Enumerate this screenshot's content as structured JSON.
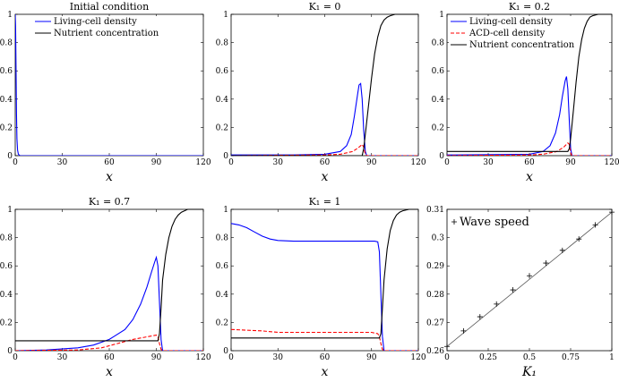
{
  "colors": {
    "living": "#0000ff",
    "acd": "#ff0000",
    "nutrient": "#000000",
    "wave": "#000000"
  },
  "chart_data": [
    {
      "type": "line",
      "title": "Initial condition",
      "xlabel": "x",
      "xlim": [
        0,
        120
      ],
      "ylim": [
        0,
        1
      ],
      "xticks": [
        "0",
        "30",
        "60",
        "90",
        "120"
      ],
      "yticks": [
        "0",
        "0.2",
        "0.4",
        "0.6",
        "0.8",
        "1"
      ],
      "legend": [
        "Living-cell density",
        "Nutrient concentration"
      ],
      "series": [
        {
          "name": "Living-cell density",
          "key": "living",
          "x": [
            0,
            0.25,
            0.5,
            0.8,
            1.1,
            1.5,
            2,
            3,
            10,
            40,
            80,
            120
          ],
          "y": [
            1,
            0.92,
            0.62,
            0.3,
            0.12,
            0.04,
            0.01,
            0.0,
            0.0,
            0.0,
            0.0,
            0.0
          ]
        }
      ]
    },
    {
      "type": "line",
      "title": "K₁ = 0",
      "xlabel": "x",
      "xlim": [
        0,
        120
      ],
      "ylim": [
        0,
        1
      ],
      "xticks": [
        "0",
        "30",
        "60",
        "90",
        "120"
      ],
      "yticks": [
        "0",
        "0.2",
        "0.4",
        "0.6",
        "0.8",
        "1"
      ],
      "series": [
        {
          "name": "Living-cell density",
          "key": "living",
          "x": [
            0,
            40,
            60,
            70,
            74,
            77,
            79,
            81,
            82,
            83,
            84,
            85,
            86,
            87,
            120
          ],
          "y": [
            0.005,
            0.005,
            0.01,
            0.03,
            0.07,
            0.15,
            0.28,
            0.43,
            0.5,
            0.51,
            0.4,
            0.18,
            0.03,
            0.0,
            0.0
          ]
        },
        {
          "name": "ACD-cell density",
          "key": "acd",
          "dashed": true,
          "x": [
            0,
            60,
            70,
            78,
            82,
            84,
            85,
            86,
            87,
            120
          ],
          "y": [
            0.0,
            0.005,
            0.01,
            0.03,
            0.06,
            0.08,
            0.06,
            0.01,
            0.0,
            0.0
          ]
        },
        {
          "name": "Nutrient concentration",
          "key": "nutrient",
          "x": [
            0,
            84,
            85,
            86,
            88,
            90,
            92,
            94,
            96,
            98,
            100,
            102,
            105,
            110,
            120
          ],
          "y": [
            0.0,
            0.0,
            0.05,
            0.15,
            0.35,
            0.55,
            0.72,
            0.84,
            0.92,
            0.96,
            0.98,
            0.99,
            1.0,
            1.0,
            1.0
          ]
        }
      ]
    },
    {
      "type": "line",
      "title": "K₁ = 0.2",
      "xlabel": "x",
      "xlim": [
        0,
        120
      ],
      "ylim": [
        0,
        1
      ],
      "xticks": [
        "0",
        "30",
        "60",
        "90",
        "120"
      ],
      "yticks": [
        "0",
        "0.2",
        "0.4",
        "0.6",
        "0.8",
        "1"
      ],
      "legend": [
        "Living-cell density",
        "ACD-cell density",
        "Nutrient concentration"
      ],
      "series": [
        {
          "name": "Living-cell density",
          "key": "living",
          "x": [
            0,
            60,
            70,
            75,
            79,
            82,
            84,
            86,
            87,
            88,
            89,
            90,
            91,
            120
          ],
          "y": [
            0.005,
            0.01,
            0.03,
            0.07,
            0.16,
            0.29,
            0.42,
            0.53,
            0.56,
            0.47,
            0.25,
            0.05,
            0.0,
            0.0
          ]
        },
        {
          "name": "ACD-cell density",
          "key": "acd",
          "dashed": true,
          "x": [
            0,
            60,
            70,
            80,
            85,
            88,
            89,
            90,
            91,
            120
          ],
          "y": [
            0.0,
            0.005,
            0.01,
            0.03,
            0.06,
            0.09,
            0.08,
            0.02,
            0.0,
            0.0
          ]
        },
        {
          "name": "Nutrient concentration",
          "key": "nutrient",
          "x": [
            0,
            85,
            88,
            89,
            90,
            92,
            94,
            96,
            98,
            100,
            102,
            104,
            106,
            110,
            120
          ],
          "y": [
            0.03,
            0.03,
            0.03,
            0.05,
            0.12,
            0.32,
            0.52,
            0.7,
            0.82,
            0.9,
            0.95,
            0.98,
            0.99,
            1.0,
            1.0
          ]
        }
      ]
    },
    {
      "type": "line",
      "title": "K₁ = 0.7",
      "xlabel": "x",
      "xlim": [
        0,
        120
      ],
      "ylim": [
        0,
        1
      ],
      "xticks": [
        "0",
        "30",
        "60",
        "90",
        "120"
      ],
      "yticks": [
        "0",
        "0.2",
        "0.4",
        "0.6",
        "0.8",
        "1"
      ],
      "series": [
        {
          "name": "Living-cell density",
          "key": "living",
          "x": [
            0,
            20,
            40,
            50,
            60,
            70,
            75,
            80,
            84,
            87,
            89,
            90,
            91,
            92,
            93,
            94,
            120
          ],
          "y": [
            0.0,
            0.005,
            0.02,
            0.04,
            0.08,
            0.15,
            0.22,
            0.33,
            0.45,
            0.56,
            0.63,
            0.66,
            0.6,
            0.35,
            0.08,
            0.0,
            0.0
          ]
        },
        {
          "name": "ACD-cell density",
          "key": "acd",
          "dashed": true,
          "x": [
            0,
            40,
            55,
            65,
            75,
            85,
            90,
            91,
            92,
            93,
            94,
            120
          ],
          "y": [
            0.0,
            0.005,
            0.02,
            0.05,
            0.08,
            0.1,
            0.11,
            0.1,
            0.05,
            0.01,
            0.0,
            0.0
          ]
        },
        {
          "name": "Nutrient concentration",
          "key": "nutrient",
          "x": [
            0,
            91,
            92,
            93,
            94,
            96,
            98,
            100,
            102,
            104,
            106,
            108,
            110,
            114,
            120
          ],
          "y": [
            0.07,
            0.07,
            0.12,
            0.3,
            0.5,
            0.68,
            0.8,
            0.88,
            0.93,
            0.96,
            0.98,
            0.99,
            1.0,
            1.0,
            1.0
          ]
        }
      ]
    },
    {
      "type": "line",
      "title": "K₁ = 1",
      "xlabel": "x",
      "xlim": [
        0,
        120
      ],
      "ylim": [
        0,
        1
      ],
      "xticks": [
        "0",
        "30",
        "60",
        "90",
        "120"
      ],
      "yticks": [
        "0",
        "0.2",
        "0.4",
        "0.6",
        "0.8",
        "1"
      ],
      "series": [
        {
          "name": "Living-cell density",
          "key": "living",
          "x": [
            0,
            5,
            10,
            15,
            20,
            25,
            30,
            40,
            60,
            80,
            92,
            94,
            95,
            96,
            97,
            98,
            120
          ],
          "y": [
            0.9,
            0.89,
            0.87,
            0.84,
            0.81,
            0.79,
            0.78,
            0.775,
            0.775,
            0.775,
            0.775,
            0.77,
            0.7,
            0.4,
            0.1,
            0.0,
            0.0
          ]
        },
        {
          "name": "ACD-cell density",
          "key": "acd",
          "dashed": true,
          "x": [
            0,
            10,
            20,
            30,
            60,
            90,
            94,
            95,
            96,
            97,
            98,
            120
          ],
          "y": [
            0.15,
            0.145,
            0.14,
            0.13,
            0.13,
            0.13,
            0.12,
            0.1,
            0.05,
            0.01,
            0.0,
            0.0
          ]
        },
        {
          "name": "Nutrient concentration",
          "key": "nutrient",
          "x": [
            0,
            94,
            95,
            96,
            97,
            98,
            100,
            102,
            104,
            106,
            108,
            110,
            114,
            120
          ],
          "y": [
            0.09,
            0.09,
            0.09,
            0.12,
            0.3,
            0.5,
            0.72,
            0.85,
            0.92,
            0.96,
            0.98,
            0.99,
            1.0,
            1.0
          ]
        }
      ]
    },
    {
      "type": "scatter",
      "xlabel": "K₁",
      "xlim": [
        0,
        1
      ],
      "ylim": [
        0.26,
        0.31
      ],
      "xticks": [
        "0",
        "0.25",
        "0.5",
        "0.75",
        "1"
      ],
      "yticks": [
        "0.26",
        "0.27",
        "0.28",
        "0.29",
        "0.3",
        "0.31"
      ],
      "legend": [
        "Wave speed"
      ],
      "fit_line": {
        "x": [
          0,
          1
        ],
        "y": [
          0.2615,
          0.309
        ]
      },
      "series": [
        {
          "name": "Wave speed",
          "key": "wave",
          "x": [
            0,
            0.1,
            0.2,
            0.3,
            0.4,
            0.5,
            0.6,
            0.7,
            0.8,
            0.9,
            1.0
          ],
          "y": [
            0.2615,
            0.267,
            0.272,
            0.2765,
            0.2815,
            0.2865,
            0.291,
            0.2955,
            0.2995,
            0.3045,
            0.309
          ]
        }
      ]
    }
  ]
}
